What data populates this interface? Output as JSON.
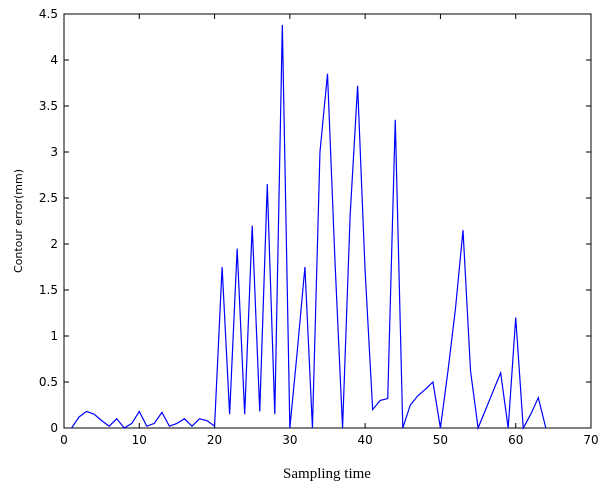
{
  "chart_data": {
    "type": "line",
    "xlabel": "Sampling time",
    "ylabel": "Contour error(mm)",
    "xlim": [
      0,
      70
    ],
    "ylim": [
      0,
      4.5
    ],
    "xticks": [
      0,
      10,
      20,
      30,
      40,
      50,
      60,
      70
    ],
    "yticks": [
      0,
      0.5,
      1,
      1.5,
      2,
      2.5,
      3,
      3.5,
      4,
      4.5
    ],
    "ytick_labels": [
      "0",
      "0.5",
      "1",
      "1.5",
      "2",
      "2.5",
      "3",
      "3.5",
      "4",
      "4.5"
    ],
    "grid": false,
    "line_color": "#0000ff",
    "series": [
      {
        "x": [
          1,
          2,
          3,
          4,
          5,
          6,
          7,
          8,
          9,
          10,
          11,
          12,
          13,
          14,
          15,
          16,
          17,
          18,
          19,
          20,
          21,
          22,
          23,
          24,
          25,
          26,
          27,
          28,
          29,
          30,
          31,
          32,
          33,
          34,
          35,
          36,
          37,
          38,
          39,
          40,
          41,
          42,
          43,
          44,
          45,
          46,
          47,
          48,
          49,
          50,
          51,
          52,
          53,
          54,
          55,
          56,
          57,
          58,
          59,
          60,
          61,
          62,
          63,
          64
        ],
        "values": [
          0.0,
          0.12,
          0.18,
          0.15,
          0.08,
          0.02,
          0.1,
          0.0,
          0.05,
          0.18,
          0.02,
          0.05,
          0.17,
          0.02,
          0.05,
          0.1,
          0.02,
          0.1,
          0.08,
          0.02,
          1.75,
          0.15,
          1.95,
          0.15,
          2.2,
          0.18,
          2.65,
          0.15,
          4.38,
          0.0,
          0.85,
          1.75,
          0.0,
          3.0,
          3.85,
          1.8,
          0.0,
          2.3,
          3.72,
          1.7,
          0.2,
          0.3,
          0.32,
          3.35,
          0.0,
          0.25,
          0.35,
          0.42,
          0.5,
          0.0,
          0.62,
          1.3,
          2.15,
          0.62,
          0.0,
          0.2,
          0.4,
          0.6,
          0.0,
          1.2,
          0.0,
          0.15,
          0.33,
          0.0
        ]
      }
    ]
  }
}
